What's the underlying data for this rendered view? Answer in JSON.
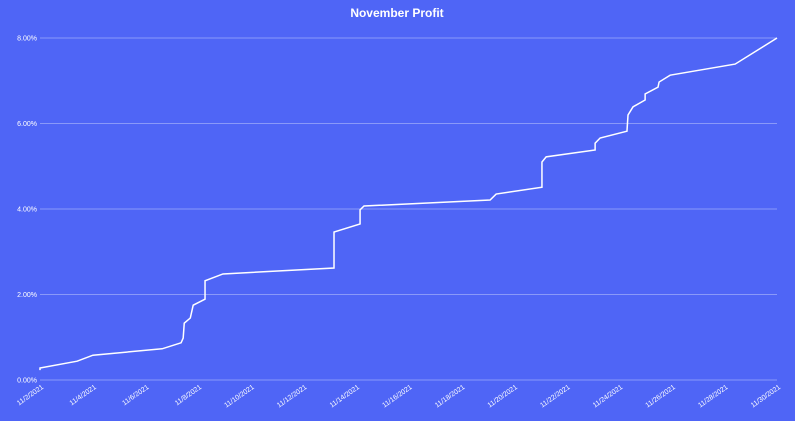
{
  "chart_data": {
    "type": "line",
    "title": "November Profit",
    "x": [
      2.0,
      2.0,
      3.41,
      4.01,
      6.64,
      7.36,
      7.44,
      7.48,
      7.71,
      7.82,
      8.27,
      8.27,
      8.95,
      13.17,
      13.17,
      14.16,
      14.16,
      14.31,
      19.1,
      19.33,
      21.07,
      21.07,
      21.23,
      23.09,
      23.09,
      23.28,
      24.3,
      24.34,
      24.53,
      24.99,
      24.99,
      25.48,
      25.52,
      25.94,
      28.41,
      30.0
    ],
    "series": [
      {
        "color": "#ffffff",
        "values": [
          0.23,
          0.28,
          0.44,
          0.58,
          0.73,
          0.87,
          0.98,
          1.33,
          1.45,
          1.75,
          1.89,
          2.32,
          2.48,
          2.62,
          3.46,
          3.65,
          3.98,
          4.07,
          4.21,
          4.35,
          4.51,
          5.1,
          5.22,
          5.38,
          5.54,
          5.66,
          5.82,
          6.2,
          6.39,
          6.55,
          6.69,
          6.85,
          6.97,
          7.13,
          7.39,
          8.0
        ]
      }
    ],
    "xlim": [
      2,
      30
    ],
    "xticks": [
      {
        "value": 2,
        "label": "11/2/2021"
      },
      {
        "value": 4,
        "label": "11/4/2021"
      },
      {
        "value": 6,
        "label": "11/6/2021"
      },
      {
        "value": 8,
        "label": "11/8/2021"
      },
      {
        "value": 10,
        "label": "11/10/2021"
      },
      {
        "value": 12,
        "label": "11/12/2021"
      },
      {
        "value": 14,
        "label": "11/14/2021"
      },
      {
        "value": 16,
        "label": "11/16/2021"
      },
      {
        "value": 18,
        "label": "11/18/2021"
      },
      {
        "value": 20,
        "label": "11/20/2021"
      },
      {
        "value": 22,
        "label": "11/22/2021"
      },
      {
        "value": 24,
        "label": "11/24/2021"
      },
      {
        "value": 26,
        "label": "11/26/2021"
      },
      {
        "value": 28,
        "label": "11/28/2021"
      },
      {
        "value": 30,
        "label": "11/30/2021"
      }
    ],
    "ylim": [
      0,
      8
    ],
    "yticks": [
      {
        "value": 0,
        "label": "0.00%"
      },
      {
        "value": 2,
        "label": "2.00%"
      },
      {
        "value": 4,
        "label": "4.00%"
      },
      {
        "value": 6,
        "label": "6.00%"
      },
      {
        "value": 8,
        "label": "8.00%"
      }
    ],
    "grid": true
  }
}
